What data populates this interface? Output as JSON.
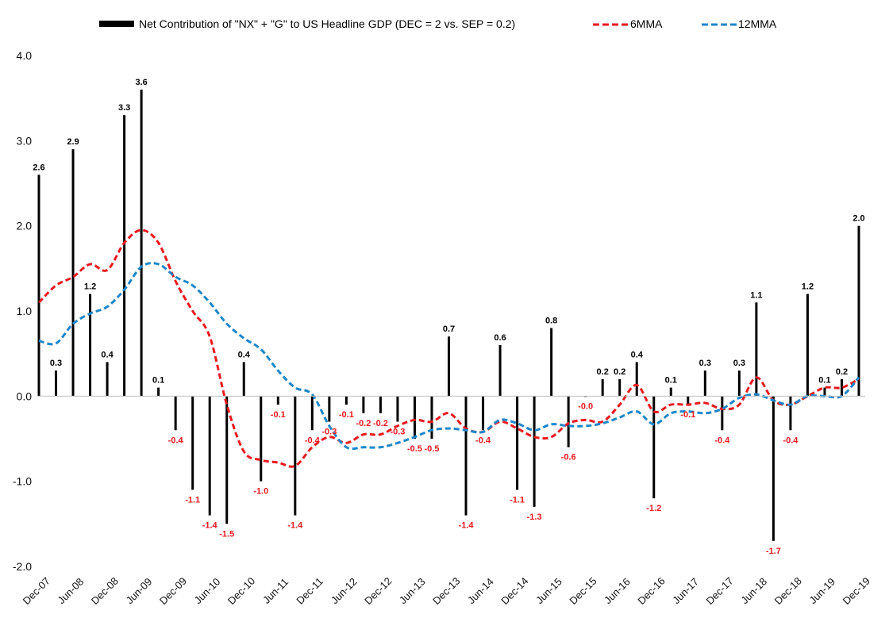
{
  "chart_data": {
    "type": "bar+line",
    "title": "",
    "xlabel": "",
    "ylabel": "",
    "ylim": [
      -2.0,
      4.0
    ],
    "yticks": [
      -2.0,
      -1.0,
      0.0,
      1.0,
      2.0,
      3.0,
      4.0
    ],
    "ytick_labels": [
      "-2.0",
      "-1.0",
      "0.0",
      "1.0",
      "2.0",
      "3.0",
      "4.0"
    ],
    "x_tick_labels": [
      "Dec-07",
      "Jun-08",
      "Dec-08",
      "Jun-09",
      "Dec-09",
      "Jun-10",
      "Dec-10",
      "Jun-11",
      "Dec-11",
      "Jun-12",
      "Dec-12",
      "Jun-13",
      "Dec-13",
      "Jun-14",
      "Dec-14",
      "Jun-15",
      "Dec-15",
      "Jun-16",
      "Dec-16",
      "Jun-17",
      "Dec-17",
      "Jun-18",
      "Dec-18",
      "Jun-19",
      "Dec-19"
    ],
    "colors": {
      "bars": "#000000",
      "sixmma": "#e8191f",
      "twelvemma": "#1e86c8",
      "neg_label": "#e8191f",
      "pos_label": "#000000"
    },
    "legend": {
      "bars": "Net Contribution of \"NX\" + \"G\" to US Headline GDP (DEC = 2 vs. SEP = 0.2)",
      "sixmma": "6MMA",
      "twelvemma": "12MMA"
    },
    "categories": [
      "Dec-07",
      "Mar-08",
      "Jun-08",
      "Sep-08",
      "Dec-08",
      "Mar-09",
      "Jun-09",
      "Sep-09",
      "Dec-09",
      "Mar-10",
      "Jun-10",
      "Sep-10",
      "Dec-10",
      "Mar-11",
      "Jun-11",
      "Sep-11",
      "Dec-11",
      "Mar-12",
      "Jun-12",
      "Sep-12",
      "Dec-12",
      "Mar-13",
      "Jun-13",
      "Sep-13",
      "Dec-13",
      "Mar-14",
      "Jun-14",
      "Sep-14",
      "Dec-14",
      "Mar-15",
      "Jun-15",
      "Sep-15",
      "Dec-15",
      "Mar-16",
      "Jun-16",
      "Sep-16",
      "Dec-16",
      "Mar-17",
      "Jun-17",
      "Sep-17",
      "Dec-17",
      "Mar-18",
      "Jun-18",
      "Sep-18",
      "Dec-18",
      "Mar-19",
      "Jun-19",
      "Sep-19",
      "Dec-19"
    ],
    "series": [
      {
        "name": "Net Contribution of \"NX\" + \"G\"",
        "kind": "bar",
        "values": [
          2.6,
          0.3,
          2.9,
          1.2,
          0.4,
          3.3,
          3.6,
          0.1,
          -0.4,
          -1.1,
          -1.4,
          -1.5,
          0.4,
          -1.0,
          -0.1,
          -1.4,
          -0.4,
          -0.3,
          -0.1,
          -0.2,
          -0.2,
          -0.3,
          -0.5,
          -0.5,
          0.7,
          -1.4,
          -0.4,
          0.6,
          -1.1,
          -1.3,
          0.8,
          -0.6,
          -0.0,
          0.2,
          0.2,
          0.4,
          -1.2,
          0.1,
          -0.1,
          0.3,
          -0.4,
          0.3,
          1.1,
          -1.7,
          -0.4,
          1.2,
          0.1,
          0.2,
          2.0
        ],
        "labels": [
          "2.6",
          "0.3",
          "2.9",
          "1.2",
          "0.4",
          "3.3",
          "3.6",
          "0.1",
          "-0.4",
          "-1.1",
          "-1.4",
          "-1.5",
          "0.4",
          "-1.0",
          "-0.1",
          "-1.4",
          "-0.4",
          "-0.3",
          "-0.1",
          "-0.2",
          "-0.2",
          "-0.3",
          "-0.5",
          "-0.5",
          "0.7",
          "-1.4",
          "-0.4",
          "0.6",
          "-1.1",
          "-1.3",
          "0.8",
          "-0.6",
          "-0.0",
          "0.2",
          "0.2",
          "0.4",
          "-1.2",
          "0.1",
          "-0.1",
          "0.3",
          "-0.4",
          "0.3",
          "1.1",
          "-1.7",
          "-0.4",
          "1.2",
          "0.1",
          "0.2",
          "2.0"
        ]
      },
      {
        "name": "6MMA",
        "kind": "line",
        "values": [
          1.1,
          1.3,
          1.4,
          1.55,
          1.48,
          1.8,
          1.95,
          1.8,
          1.35,
          1.0,
          0.7,
          -0.1,
          -0.65,
          -0.75,
          -0.78,
          -0.82,
          -0.6,
          -0.48,
          -0.55,
          -0.45,
          -0.45,
          -0.35,
          -0.28,
          -0.3,
          -0.2,
          -0.38,
          -0.42,
          -0.3,
          -0.38,
          -0.48,
          -0.48,
          -0.32,
          -0.28,
          -0.3,
          -0.1,
          0.13,
          -0.18,
          -0.1,
          -0.1,
          -0.08,
          -0.15,
          -0.1,
          0.22,
          -0.05,
          -0.1,
          0.0,
          0.1,
          0.1,
          0.2
        ]
      },
      {
        "name": "12MMA",
        "kind": "line",
        "values": [
          0.65,
          0.62,
          0.85,
          0.97,
          1.05,
          1.25,
          1.52,
          1.55,
          1.4,
          1.3,
          1.1,
          0.85,
          0.68,
          0.55,
          0.3,
          0.1,
          0.02,
          -0.35,
          -0.6,
          -0.6,
          -0.6,
          -0.55,
          -0.48,
          -0.4,
          -0.38,
          -0.4,
          -0.42,
          -0.28,
          -0.32,
          -0.4,
          -0.33,
          -0.35,
          -0.35,
          -0.32,
          -0.25,
          -0.18,
          -0.33,
          -0.2,
          -0.18,
          -0.2,
          -0.15,
          -0.02,
          0.02,
          -0.05,
          -0.1,
          0.0,
          0.0,
          0.0,
          0.22
        ]
      }
    ]
  }
}
